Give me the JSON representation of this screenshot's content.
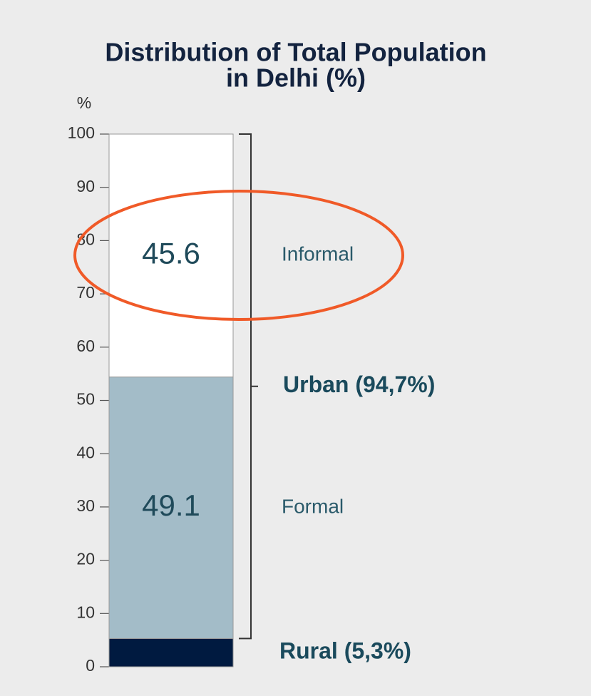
{
  "chart_data": {
    "type": "stacked-bar",
    "title": [
      "Distribution of Total Population",
      "in Delhi (%)"
    ],
    "y_label": "%",
    "categories": [
      null
    ],
    "series": [
      {
        "name": "Rural (5,3%)",
        "color": "#001a40",
        "values": [
          5.3
        ]
      },
      {
        "name": "Formal",
        "color": "#a3bcc8",
        "values": [
          49.1
        ]
      },
      {
        "name": "Informal",
        "color": "#ffffff",
        "values": [
          45.6
        ]
      }
    ],
    "annotations": [
      "Urban (94,7%)"
    ],
    "ylim": [
      0,
      100
    ],
    "yticks": [
      0,
      10,
      20,
      30,
      40,
      50,
      60,
      70,
      80,
      90,
      100
    ]
  }
}
